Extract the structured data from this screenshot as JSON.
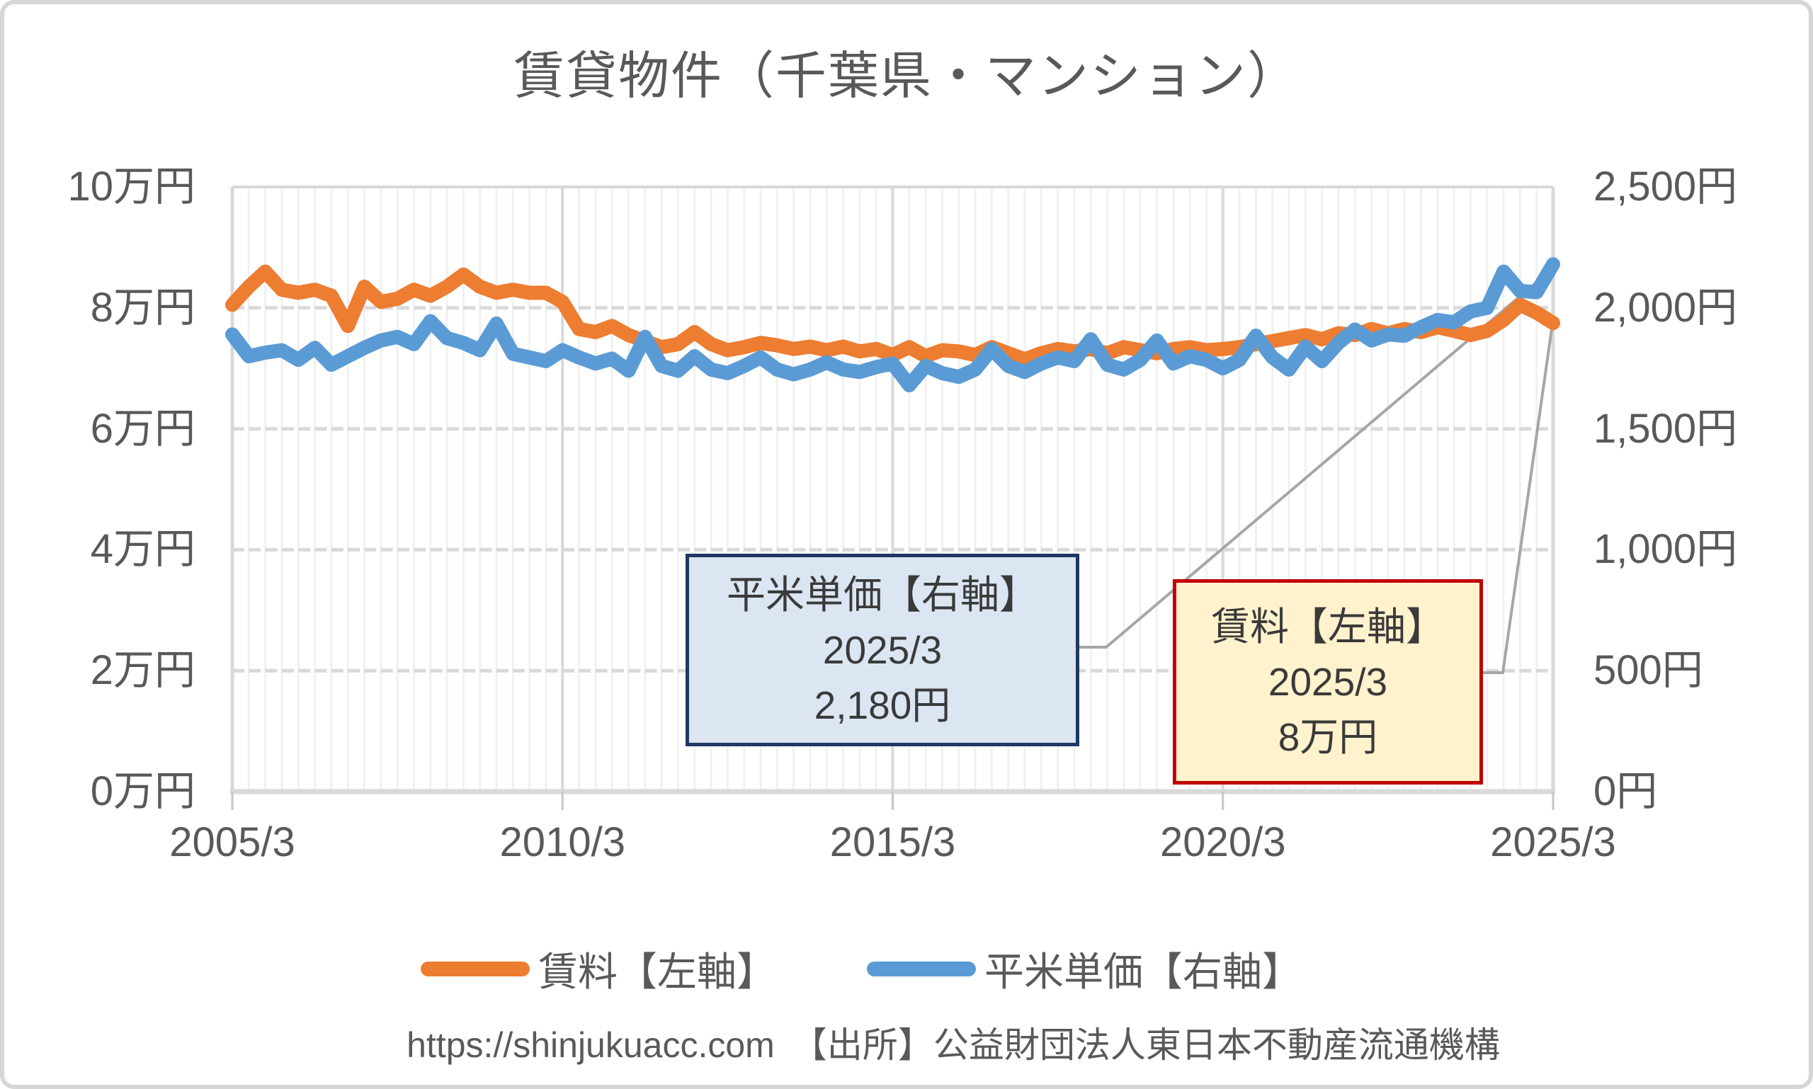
{
  "title": "賃貸物件（千葉県・マンション）",
  "chart_data": {
    "type": "line",
    "title": "賃貸物件（千葉県・マンション）",
    "x_interval": "quarterly",
    "x_start": "2005/3",
    "x_end": "2025/3",
    "x_tick_labels": [
      "2005/3",
      "2010/3",
      "2015/3",
      "2020/3",
      "2025/3"
    ],
    "x_tick_indices": [
      0,
      20,
      40,
      60,
      80
    ],
    "y_left": {
      "unit": "万円",
      "min": 0,
      "max": 10,
      "tick_values": [
        10,
        8,
        6,
        4,
        2,
        0
      ],
      "labels": [
        "10万円",
        "8万円",
        "6万円",
        "4万円",
        "2万円",
        "0万円"
      ]
    },
    "y_right": {
      "unit": "円",
      "min": 0,
      "max": 2500,
      "tick_values": [
        2500,
        2000,
        1500,
        1000,
        500,
        0
      ],
      "labels": [
        "2,500円",
        "2,000円",
        "1,500円",
        "1,000円",
        "500円",
        "0円"
      ]
    },
    "grid": {
      "horizontal_dashed_left_values": [
        8,
        6,
        4,
        2
      ],
      "vertical_minor": "every quarter",
      "vertical_major_indices": [
        20,
        40,
        60
      ]
    },
    "legend_position": "bottom",
    "series": [
      {
        "name": "賃料【左軸】",
        "axis": "left",
        "color": "#ED7D31",
        "values": [
          8.05,
          8.35,
          8.6,
          8.3,
          8.25,
          8.3,
          8.2,
          7.7,
          8.35,
          8.1,
          8.15,
          8.3,
          8.2,
          8.35,
          8.55,
          8.35,
          8.25,
          8.3,
          8.25,
          8.25,
          8.1,
          7.65,
          7.6,
          7.7,
          7.55,
          7.45,
          7.35,
          7.4,
          7.6,
          7.4,
          7.3,
          7.35,
          7.42,
          7.38,
          7.32,
          7.36,
          7.3,
          7.36,
          7.28,
          7.32,
          7.22,
          7.35,
          7.2,
          7.3,
          7.28,
          7.22,
          7.35,
          7.25,
          7.15,
          7.25,
          7.32,
          7.28,
          7.32,
          7.25,
          7.35,
          7.3,
          7.25,
          7.32,
          7.35,
          7.3,
          7.32,
          7.35,
          7.4,
          7.45,
          7.5,
          7.55,
          7.48,
          7.58,
          7.55,
          7.65,
          7.58,
          7.65,
          7.6,
          7.68,
          7.62,
          7.55,
          7.62,
          7.8,
          8.05,
          7.92,
          7.75
        ]
      },
      {
        "name": "平米単価【右軸】",
        "axis": "right",
        "color": "#5B9BD5",
        "values": [
          1890,
          1800,
          1815,
          1825,
          1785,
          1835,
          1765,
          1800,
          1835,
          1865,
          1880,
          1850,
          1945,
          1875,
          1855,
          1825,
          1935,
          1810,
          1795,
          1780,
          1825,
          1795,
          1770,
          1790,
          1740,
          1880,
          1760,
          1740,
          1800,
          1745,
          1730,
          1760,
          1795,
          1745,
          1725,
          1745,
          1775,
          1745,
          1735,
          1755,
          1770,
          1680,
          1760,
          1730,
          1715,
          1745,
          1830,
          1760,
          1735,
          1770,
          1795,
          1780,
          1870,
          1765,
          1745,
          1785,
          1865,
          1770,
          1800,
          1785,
          1750,
          1785,
          1885,
          1795,
          1745,
          1840,
          1780,
          1855,
          1910,
          1865,
          1890,
          1885,
          1920,
          1950,
          1940,
          1985,
          2000,
          2150,
          2070,
          2065,
          2180
        ]
      }
    ]
  },
  "annotations": [
    {
      "id": "unit-price-callout",
      "title": "平米単価【右軸】",
      "date": "2025/3",
      "value": "2,180円",
      "fill": "#DCE6F2",
      "border": "#1F3864"
    },
    {
      "id": "rent-callout",
      "title": "賃料【左軸】",
      "date": "2025/3",
      "value": "8万円",
      "fill": "#FFF2CC",
      "border": "#C00000"
    }
  ],
  "legend": {
    "items": [
      {
        "label": "賃料【左軸】",
        "color": "#ED7D31"
      },
      {
        "label": "平米単価【右軸】",
        "color": "#5B9BD5"
      }
    ]
  },
  "footer": {
    "url": "https://shinjukuacc.com",
    "source": "【出所】公益財団法人東日本不動産流通機構"
  },
  "colors": {
    "rent_line": "#ED7D31",
    "unit_price_line": "#5B9BD5",
    "text": "#595959",
    "grid_minor": "#F1F1F1",
    "grid_major": "#D9D9D9",
    "leader_line": "#A6A6A6"
  }
}
